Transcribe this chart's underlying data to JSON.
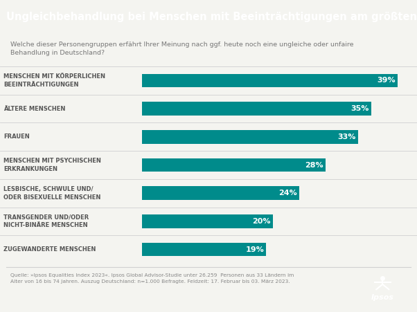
{
  "title": "Ungleichbehandlung bei Menschen mit Beeinträchtigungen am größten",
  "subtitle": "Welche dieser Personengruppen erfährt Ihrer Meinung nach ggf. heute noch eine ungleiche oder unfaire\nBehandlung in Deutschland?",
  "categories": [
    "MENSCHEN MIT KÖRPERLICHEN\nBEEINTRÄCHTIGUNGEN",
    "ÄLTERE MENSCHEN",
    "FRAUEN",
    "MENSCHEN MIT PSYCHISCHEN\nERKRANKUNGEN",
    "LESBISCHE, SCHWULE UND/\nODER BISEXUELLE MENSCHEN",
    "TRANSGENDER UND/ODER\nNICHT-BINÄRE MENSCHEN",
    "ZUGEWANDERTE MENSCHEN"
  ],
  "values": [
    39,
    35,
    33,
    28,
    24,
    20,
    19
  ],
  "bar_color": "#008b8b",
  "title_bg_color": "#8c8c8c",
  "title_text_color": "#ffffff",
  "label_text_color": "#555555",
  "bar_label_color": "#ffffff",
  "footer_text": "Quelle: »Ipsos Equalities Index 2023«. Ipsos Global Advisor-Studie unter 26.259  Personen aus 33 Ländern im\nAlter von 16 bis 74 Jahren. Auszug Deutschland: n=1.000 Befragte. Feldzeit: 17. Februar bis 03. März 2023.",
  "bg_color": "#f4f4f0",
  "separator_color": "#d0d0d0",
  "ipsos_bg_color": "#1b3d8f",
  "title_fontsize": 10.5,
  "subtitle_fontsize": 6.8,
  "label_fontsize": 6.0,
  "bar_label_fontsize": 8.0,
  "footer_fontsize": 5.4
}
